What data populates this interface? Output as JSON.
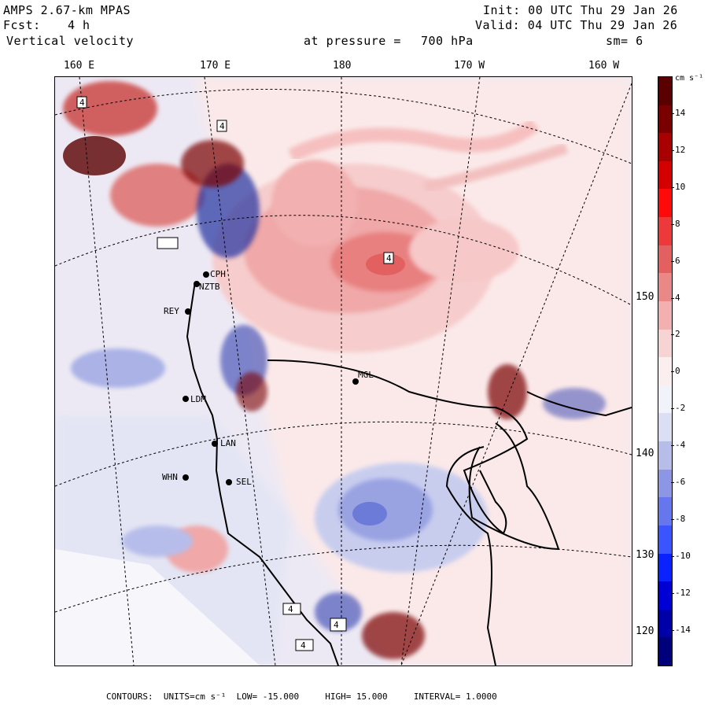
{
  "header": {
    "model": "AMPS 2.67-km MPAS",
    "fcst_label": "Fcst:",
    "fcst_value": "4 h",
    "field": "Vertical velocity",
    "init": "Init: 00 UTC Thu 29 Jan 26",
    "valid": "Valid: 04 UTC Thu 29 Jan 26",
    "level_label": "at pressure =",
    "level_value": "700 hPa",
    "smooth": "sm= 6"
  },
  "longitude_labels": [
    "160 E",
    "170 E",
    "180",
    "170 W",
    "160 W"
  ],
  "latitude_labels": [
    "150 W",
    "140 W",
    "130 W",
    "120 W"
  ],
  "stations": [
    "CPH",
    "NZTB",
    "REY",
    "LDM",
    "LAN",
    "WHN",
    "SEL",
    "MGL"
  ],
  "extrema_markers": [
    "4",
    "4",
    "4",
    "4",
    "4",
    "4"
  ],
  "colorbar": {
    "unit": "cm s⁻¹",
    "labels": [
      "14",
      "12",
      "10",
      "8",
      "6",
      "4",
      "2",
      "0",
      "-2",
      "-4",
      "-6",
      "-8",
      "-10",
      "-12",
      "-14"
    ],
    "colors": [
      "#00007a",
      "#0000a8",
      "#0000d4",
      "#0a22ff",
      "#3a55ff",
      "#6677ee",
      "#8c96e4",
      "#b6bde9",
      "#dcdff3",
      "#f2f2fa",
      "#fbeeee",
      "#f6d4d4",
      "#f2b0b0",
      "#ea8888",
      "#e26060",
      "#ec3a3a",
      "#ff0a0a",
      "#d40000",
      "#a80000",
      "#7a0000",
      "#5a0000"
    ]
  },
  "footer": {
    "contours_label": "CONTOURS:",
    "units": "UNITS=cm s⁻¹",
    "low": "LOW= -15.000",
    "high": "HIGH= 15.000",
    "interval": "INTERVAL= 1.0000"
  }
}
